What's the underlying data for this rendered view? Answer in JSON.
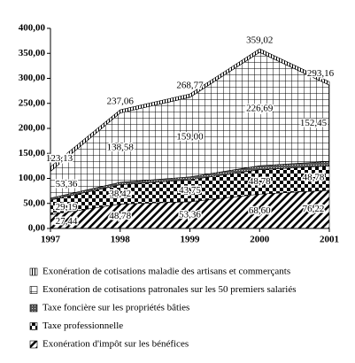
{
  "chart_data": {
    "type": "stacked-area",
    "x": [
      1997,
      1998,
      1999,
      2000,
      2001
    ],
    "xlim": [
      1997,
      2001
    ],
    "xticks": [
      1997,
      1998,
      1999,
      2000,
      2001
    ],
    "ylim": [
      0,
      400
    ],
    "yticks": [
      {
        "value": 0,
        "label": "0,00"
      },
      {
        "value": 50,
        "label": "50,00"
      },
      {
        "value": 100,
        "label": "100,00"
      },
      {
        "value": 150,
        "label": "150,00"
      },
      {
        "value": 200,
        "label": "200,00"
      },
      {
        "value": 250,
        "label": "250,00"
      },
      {
        "value": 300,
        "label": "300,00"
      },
      {
        "value": 350,
        "label": "350,00"
      },
      {
        "value": 400,
        "label": "400,00"
      }
    ],
    "series": [
      {
        "name": "Exonération d'impôt sur les bénéfices",
        "pattern": "diagonal",
        "values": [
          27.44,
          48.78,
          53.36,
          68.6,
          76.22
        ],
        "value_labels": [
          "27,44",
          "48,78",
          "53,36",
          "68,60",
          "76,22"
        ]
      },
      {
        "name": "Taxe professionnelle",
        "pattern": "checker",
        "values": [
          29.19,
          38.42,
          43.75,
          48.78,
          48.78
        ],
        "value_labels": [
          "29,19",
          "38,42",
          "43,75",
          "48,78",
          "48,78"
        ]
      },
      {
        "name": "Taxe foncière sur les propriétés bâties",
        "pattern": "dots",
        "values": [
          4,
          5,
          6,
          8,
          9
        ]
      },
      {
        "name": "Exonération de cotisations patronales sur les 50 premiers salariés",
        "pattern": "grid",
        "values": [
          53.36,
          138.58,
          159.0,
          226.69,
          152.45
        ],
        "value_labels": [
          "53,36",
          "138,58",
          "159,00",
          "226,69",
          "152,45"
        ]
      },
      {
        "name": "Exonération de cotisations maladie des artisans et commerçants",
        "pattern": "vertical",
        "values": [
          9.14,
          6.28,
          6.66,
          6.95,
          6.71
        ]
      }
    ],
    "totals": {
      "values": [
        123.13,
        237.06,
        268.77,
        359.02,
        293.16
      ],
      "value_labels": [
        "123,13",
        "237,06",
        "268,77",
        "359,02",
        "293,16"
      ]
    }
  }
}
